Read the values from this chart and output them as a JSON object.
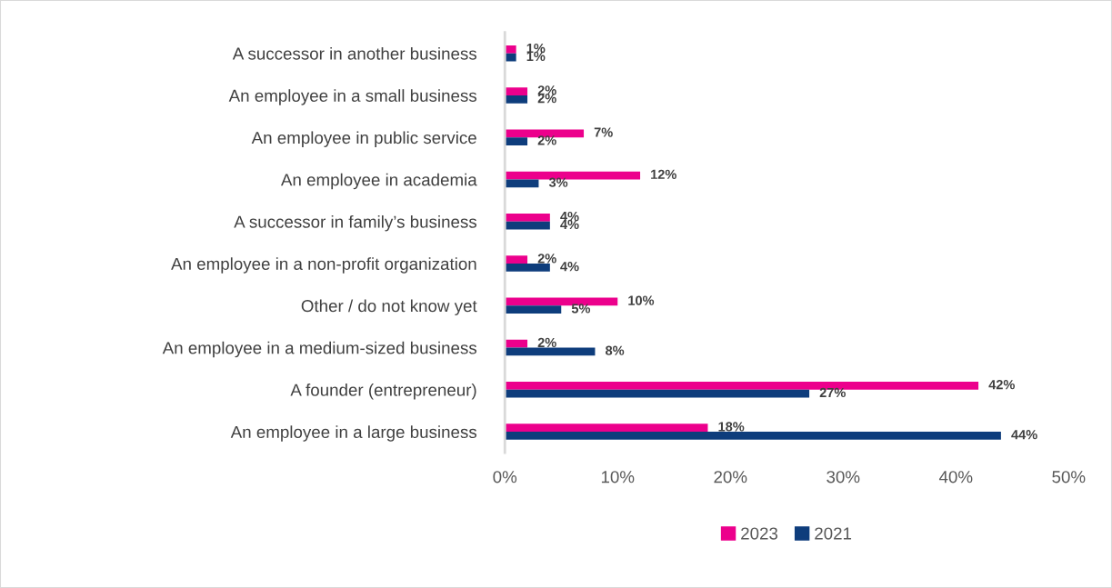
{
  "chart_data": {
    "type": "bar",
    "orientation": "horizontal",
    "categories": [
      "A successor in another business",
      "An employee in a small business",
      "An employee in public service",
      "An employee in academia",
      "A successor in family’s business",
      "An employee in a non-profit organization",
      "Other / do not know yet",
      "An employee in a medium-sized business",
      "A founder (entrepreneur)",
      "An employee in a large business"
    ],
    "series": [
      {
        "name": "2023",
        "color": "#ec008c",
        "values": [
          1,
          2,
          7,
          12,
          4,
          2,
          10,
          2,
          42,
          18
        ],
        "value_labels": [
          "1%",
          "2%",
          "7%",
          "12%",
          "4%",
          "2%",
          "10%",
          "2%",
          "42%",
          "18%"
        ]
      },
      {
        "name": "2021",
        "color": "#0e3d7c",
        "values": [
          1,
          2,
          2,
          3,
          4,
          4,
          5,
          8,
          27,
          44
        ],
        "value_labels": [
          "1%",
          "2%",
          "2%",
          "3%",
          "4%",
          "4%",
          "5%",
          "8%",
          "27%",
          "44%"
        ]
      }
    ],
    "xlim": [
      0,
      50
    ],
    "xticks": [
      {
        "value": 0,
        "label": "0%"
      },
      {
        "value": 10,
        "label": "10%"
      },
      {
        "value": 20,
        "label": "20%"
      },
      {
        "value": 30,
        "label": "30%"
      },
      {
        "value": 40,
        "label": "40%"
      },
      {
        "value": 50,
        "label": "50%"
      }
    ],
    "grid": false,
    "legend": "bottom"
  }
}
